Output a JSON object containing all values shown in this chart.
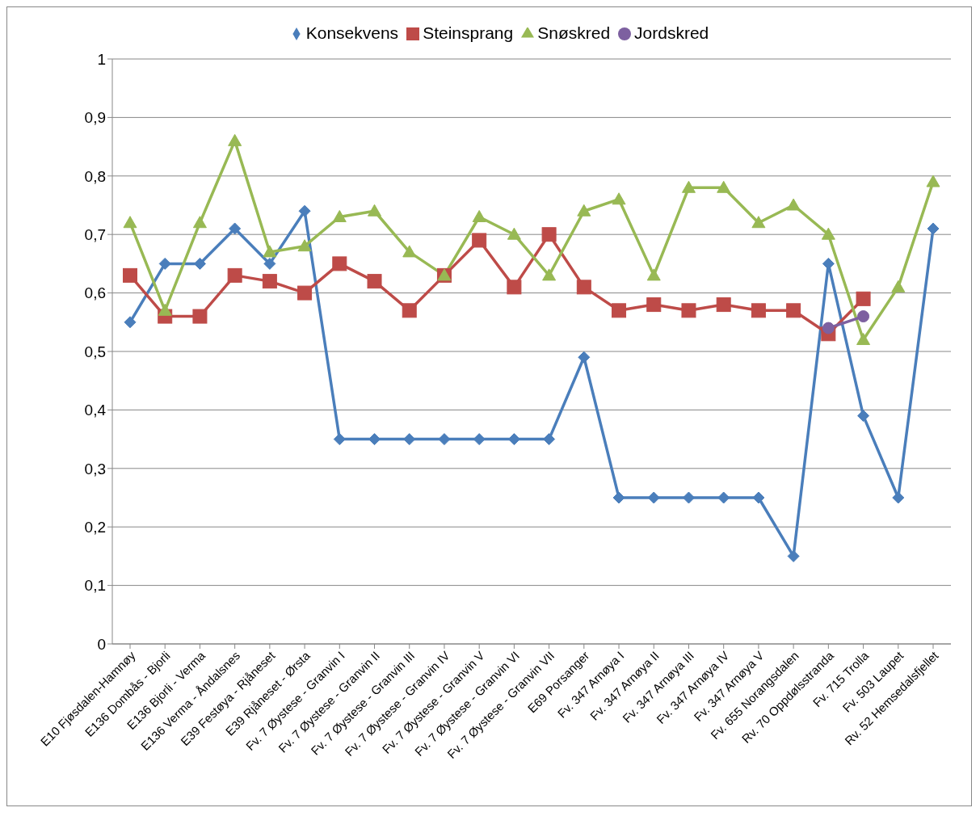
{
  "chart_data": {
    "type": "line",
    "categories": [
      "E10 Fjøsdalen-Hamnøy",
      "E136 Dombås - Bjorli",
      "E136 Bjorli - Verma",
      "E136 Verma - Åndalsnes",
      "E39 Festøya - Rjåneset",
      "E39 Rjåneset - Ørsta",
      "Fv. 7 Øystese - Granvin I",
      "Fv. 7 Øystese - Granvin II",
      "Fv. 7 Øystese - Granvin III",
      "Fv. 7 Øystese - Granvin IV",
      "Fv. 7 Øystese - Granvin V",
      "Fv. 7 Øystese - Granvin VI",
      "Fv. 7 Øystese - Granvin VII",
      "E69 Porsanger",
      "Fv. 347 Arnøya I",
      "Fv. 347 Arnøya II",
      "Fv. 347 Arnøya III",
      "Fv. 347 Arnøya IV",
      "Fv. 347 Arnøya V",
      "Fv. 655 Norangsdalen",
      "Rv. 70 Oppdølsstranda",
      "Fv. 715 Trolla",
      "Fv. 503 Laupet",
      "Rv. 52 Hemsedalsfjellet"
    ],
    "series": [
      {
        "name": "Konsekvens",
        "color": "#4a7ebb",
        "marker": "diamond",
        "values": [
          0.55,
          0.65,
          0.65,
          0.71,
          0.65,
          0.74,
          0.35,
          0.35,
          0.35,
          0.35,
          0.35,
          0.35,
          0.35,
          0.49,
          0.25,
          0.25,
          0.25,
          0.25,
          0.25,
          0.15,
          0.65,
          0.39,
          0.25,
          0.71
        ]
      },
      {
        "name": "Steinsprang",
        "color": "#be4b48",
        "marker": "square",
        "values": [
          0.63,
          0.56,
          0.56,
          0.63,
          0.62,
          0.6,
          0.65,
          0.62,
          0.57,
          0.63,
          0.69,
          0.61,
          0.7,
          0.61,
          0.57,
          0.58,
          0.57,
          0.58,
          0.57,
          0.57,
          0.53,
          0.59,
          null,
          null
        ]
      },
      {
        "name": "Snøskred",
        "color": "#98b954",
        "marker": "triangle",
        "values": [
          0.72,
          0.57,
          0.72,
          0.86,
          0.67,
          0.68,
          0.73,
          0.74,
          0.67,
          0.63,
          0.73,
          0.7,
          0.63,
          0.74,
          0.76,
          0.63,
          0.78,
          0.78,
          0.72,
          0.75,
          0.7,
          0.52,
          0.61,
          0.79
        ]
      },
      {
        "name": "Jordskred",
        "color": "#7d60a0",
        "marker": "circle",
        "values": [
          null,
          null,
          null,
          null,
          null,
          null,
          null,
          null,
          null,
          null,
          null,
          null,
          null,
          null,
          null,
          null,
          null,
          null,
          null,
          null,
          0.54,
          0.56,
          null,
          null
        ]
      }
    ],
    "ylim": [
      0,
      1
    ],
    "yticks": [
      0,
      {
        "value": 0.1,
        "label": "0,1"
      },
      {
        "value": 0.2,
        "label": "0,2"
      },
      {
        "value": 0.3,
        "label": "0,3"
      },
      {
        "value": 0.4,
        "label": "0,4"
      },
      {
        "value": 0.5,
        "label": "0,5"
      },
      {
        "value": 0.6,
        "label": "0,6"
      },
      {
        "value": 0.7,
        "label": "0,7"
      },
      {
        "value": 0.8,
        "label": "0,8"
      },
      {
        "value": 0.9,
        "label": "0,9"
      },
      1
    ],
    "grid": "y",
    "legend": "top",
    "line_style": "solid"
  }
}
